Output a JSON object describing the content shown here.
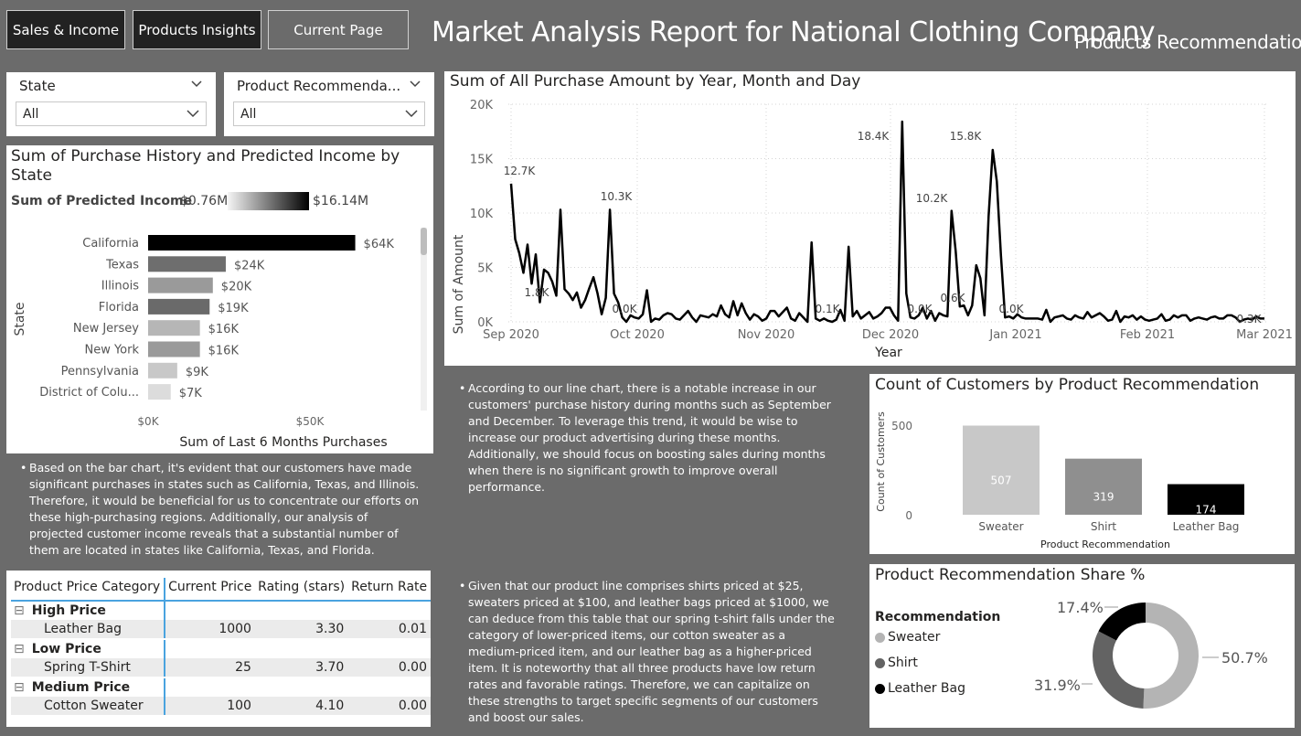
{
  "nav": {
    "sales_income": "Sales & Income",
    "products_insights": "Products Insights",
    "current_page": "Current Page"
  },
  "header": {
    "title": "Market Analysis Report for National Clothing Company",
    "subtitle": "Products Recommendation"
  },
  "slicers": {
    "state": {
      "label": "State",
      "value": "All"
    },
    "product": {
      "label": "Product Recommenda...",
      "value": "All"
    }
  },
  "state_chart": {
    "title": "Sum of Purchase History and Predicted Income by State",
    "legend_label": "Sum of Predicted Income",
    "legend_min": "$0.76M",
    "legend_max": "$16.14M",
    "ylabel": "State",
    "xlabel": "Sum of Last 6 Months Purchases",
    "xticks": [
      "$0K",
      "$50K"
    ]
  },
  "line_chart": {
    "title": "Sum of All Purchase Amount by Year, Month and Day",
    "ylabel": "Sum of Amount",
    "xlabel": "Year",
    "yticks": [
      "0K",
      "5K",
      "10K",
      "15K",
      "20K"
    ],
    "xticks": [
      "Sep 2020",
      "Oct 2020",
      "Nov 2020",
      "Dec 2020",
      "Jan 2021",
      "Feb 2021",
      "Mar 2021"
    ],
    "annotations": [
      "12.7K",
      "1.8K",
      "10.3K",
      "0.0K",
      "0.1K",
      "18.4K",
      "0.0K",
      "10.2K",
      "0.6K",
      "15.8K",
      "0.0K",
      "0.3K"
    ]
  },
  "count_chart": {
    "title": "Count of Customers by Product Recommendation",
    "ylabel": "Count of Customers",
    "xlabel": "Product Recommendation",
    "yticks": [
      "0",
      "500"
    ]
  },
  "share_chart": {
    "title": "Product Recommendation Share %",
    "legend_title": "Recommendation",
    "labels": [
      "50.7%",
      "31.9%",
      "17.4%"
    ]
  },
  "notes": {
    "line_note": "According to our line chart, there is a notable increase in our customers' purchase history during months such as September and December. To leverage this trend, it would be wise to increase our product advertising during these months. Additionally, we should focus on boosting sales during months when there is no significant growth to improve overall performance.",
    "bar_note": "Based on the bar chart, it's evident that our customers have made significant purchases in states such as California, Texas, and Illinois. Therefore, it would be beneficial for us to concentrate our efforts on these high-purchasing regions. Additionally, our analysis of projected customer income reveals that a substantial number of them are located in states like California, Texas, and Florida.",
    "table_note": "Given that our product line comprises shirts priced at $25, sweaters priced at $100, and leather bags priced at $1000, we can deduce from this table that our spring t-shirt falls under the category of lower-priced items, our cotton sweater as a medium-priced item, and our leather bag as a higher-priced item. It is noteworthy that all three products have low return rates and favorable ratings. Therefore, we can capitalize on these strengths to target specific segments of our customers and boost our sales."
  },
  "matrix": {
    "headers": [
      "Product Price Category",
      "Current Price",
      "Rating (stars)",
      "Return Rate"
    ],
    "groups": [
      {
        "name": "High Price",
        "rows": [
          {
            "product": "Leather Bag",
            "price": "1000",
            "rating": "3.30",
            "return": "0.01"
          }
        ]
      },
      {
        "name": "Low Price",
        "rows": [
          {
            "product": "Spring T-Shirt",
            "price": "25",
            "rating": "3.70",
            "return": "0.00"
          }
        ]
      },
      {
        "name": "Medium Price",
        "rows": [
          {
            "product": "Cotton Sweater",
            "price": "100",
            "rating": "4.10",
            "return": "0.00"
          }
        ]
      }
    ]
  },
  "chart_data": [
    {
      "type": "bar",
      "title": "Sum of Purchase History and Predicted Income by State",
      "orientation": "horizontal",
      "categories": [
        "California",
        "Texas",
        "Illinois",
        "Florida",
        "New Jersey",
        "New York",
        "Pennsylvania",
        "District of Colu..."
      ],
      "values": [
        64,
        24,
        20,
        19,
        16,
        16,
        9,
        7
      ],
      "labels": [
        "$64K",
        "$24K",
        "$20K",
        "$19K",
        "$16K",
        "$16K",
        "$9K",
        "$7K"
      ],
      "colors": [
        "#000000",
        "#6e6e6e",
        "#9a9a9a",
        "#6a6a6a",
        "#b6b6b6",
        "#9a9a9a",
        "#c8c8c8",
        "#dcdcdc"
      ],
      "xlabel": "Sum of Last 6 Months Purchases",
      "ylabel": "State",
      "xlim": [
        0,
        72
      ]
    },
    {
      "type": "line",
      "title": "Sum of All Purchase Amount by Year, Month and Day",
      "x_start": "Sep 2020",
      "x_end": "Mar 2021",
      "values": [
        12.7,
        7.6,
        6.3,
        4.5,
        7.1,
        3.5,
        6.2,
        1.8,
        4.8,
        4.5,
        3.7,
        2.4,
        10.3,
        3.0,
        2.6,
        2.0,
        2.7,
        1.3,
        2.0,
        3.1,
        4.1,
        2.6,
        0.7,
        2.2,
        10.3,
        2.6,
        1.8,
        0.4,
        0.0,
        0.6,
        0.4,
        0.3,
        0.7,
        2.9,
        0.0,
        0.3,
        0.2,
        0.6,
        0.8,
        0.7,
        0.3,
        0.2,
        0.6,
        1.0,
        0.4,
        0.0,
        0.6,
        0.5,
        0.4,
        0.7,
        0.5,
        1.5,
        0.7,
        0.4,
        1.9,
        0.6,
        1.7,
        0.8,
        0.2,
        0.7,
        0.5,
        0.1,
        0.3,
        1.0,
        1.0,
        0.5,
        0.9,
        1.3,
        0.3,
        0.1,
        0.8,
        0.4,
        0.0,
        7.3,
        0.3,
        0.1,
        0.3,
        0.1,
        0.0,
        0.2,
        1.1,
        0.1,
        6.9,
        0.5,
        1.0,
        0.3,
        0.6,
        0.9,
        0.3,
        0.5,
        0.8,
        1.3,
        1.3,
        0.6,
        0.1,
        18.4,
        2.6,
        0.4,
        0.3,
        0.6,
        1.3,
        0.3,
        1.0,
        0.1,
        0.8,
        0.6,
        0.5,
        10.2,
        6.5,
        1.4,
        1.5,
        0.6,
        1.5,
        5.2,
        4.0,
        0.6,
        9.7,
        15.8,
        12.9,
        6.1,
        0.4,
        0.5,
        0.3,
        0.7,
        0.4,
        0.3,
        0.3,
        0.3,
        0.3,
        0.2,
        1.1,
        0.0,
        0.4,
        0.5,
        0.6,
        0.3,
        0.2,
        0.6,
        0.4,
        0.3,
        0.9,
        0.4,
        0.6,
        0.8,
        0.5,
        0.1,
        0.2,
        1.0,
        0.0,
        0.5,
        0.4,
        0.6,
        0.2,
        0.5,
        0.2,
        0.1,
        0.2,
        0.3,
        0.7,
        0.1,
        0.2,
        0.6,
        0.4,
        0.6,
        0.6,
        0.1,
        0.3,
        0.4,
        0.3,
        0.2,
        0.4,
        0.5,
        0.3,
        0.3,
        0.6,
        0.6,
        0.4,
        0.0,
        0.2,
        0.3,
        0.2,
        0.5,
        0.3,
        0.3
      ],
      "ylabel": "Sum of Amount",
      "xlabel": "Year",
      "ylim": [
        0,
        20
      ]
    },
    {
      "type": "bar",
      "title": "Count of Customers by Product Recommendation",
      "categories": [
        "Sweater",
        "Shirt",
        "Leather Bag"
      ],
      "values": [
        507,
        319,
        174
      ],
      "colors": [
        "#c8c8c8",
        "#8f8f8f",
        "#000000"
      ],
      "xlabel": "Product Recommendation",
      "ylabel": "Count of Customers",
      "ylim": [
        0,
        520
      ]
    },
    {
      "type": "pie",
      "title": "Product Recommendation Share %",
      "categories": [
        "Sweater",
        "Shirt",
        "Leather Bag"
      ],
      "values": [
        50.7,
        31.9,
        17.4
      ],
      "labels": [
        "50.7%",
        "31.9%",
        "17.4%"
      ],
      "colors": [
        "#b4b4b4",
        "#636363",
        "#000000"
      ]
    }
  ]
}
